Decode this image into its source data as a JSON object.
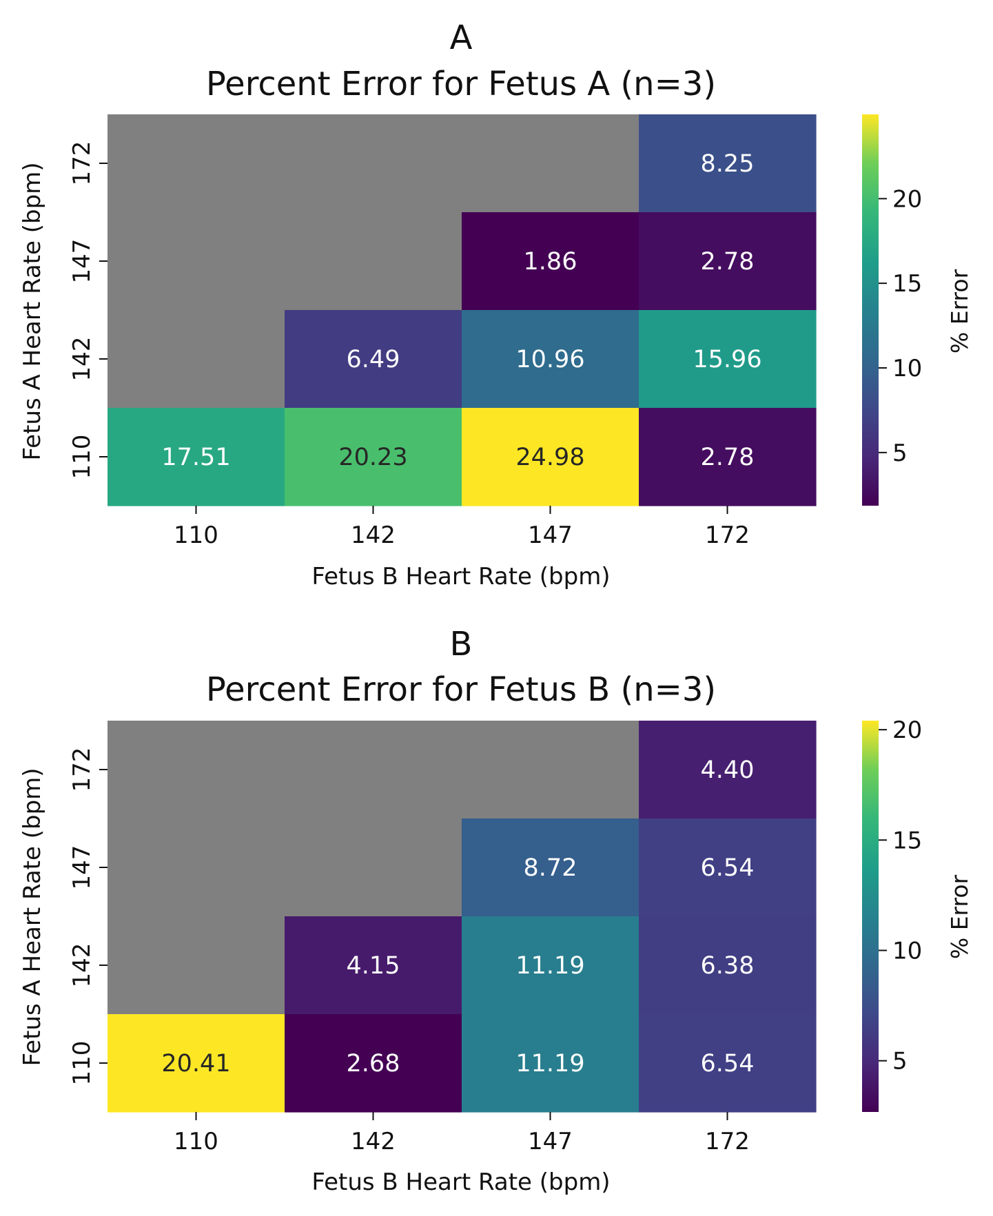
{
  "chart_data": [
    {
      "type": "heatmap",
      "panel_label": "A",
      "title": "Percent Error for Fetus A (n=3)",
      "xlabel": "Fetus B Heart Rate (bpm)",
      "ylabel": "Fetus A Heart Rate (bpm)",
      "x_categories": [
        "110",
        "142",
        "147",
        "172"
      ],
      "y_categories": [
        "172",
        "147",
        "142",
        "110"
      ],
      "values": [
        [
          null,
          null,
          null,
          8.25
        ],
        [
          null,
          null,
          1.86,
          2.78
        ],
        [
          null,
          6.49,
          10.96,
          15.96
        ],
        [
          17.51,
          20.23,
          24.98,
          2.78
        ]
      ],
      "value_labels": [
        [
          null,
          null,
          null,
          "8.25"
        ],
        [
          null,
          null,
          "1.86",
          "2.78"
        ],
        [
          null,
          "6.49",
          "10.96",
          "15.96"
        ],
        [
          "17.51",
          "20.23",
          "24.98",
          "2.78"
        ]
      ],
      "missing_color": "#808080",
      "colormap": "viridis",
      "colorbar": {
        "label": "% Error",
        "vmin": 1.86,
        "vmax": 24.98,
        "ticks": [
          5,
          10,
          15,
          20
        ],
        "tick_labels": [
          "5",
          "10",
          "15",
          "20"
        ]
      }
    },
    {
      "type": "heatmap",
      "panel_label": "B",
      "title": "Percent Error for Fetus B (n=3)",
      "xlabel": "Fetus B Heart Rate (bpm)",
      "ylabel": "Fetus A Heart Rate (bpm)",
      "x_categories": [
        "110",
        "142",
        "147",
        "172"
      ],
      "y_categories": [
        "172",
        "147",
        "142",
        "110"
      ],
      "values": [
        [
          null,
          null,
          null,
          4.4
        ],
        [
          null,
          null,
          8.72,
          6.54
        ],
        [
          null,
          4.15,
          11.19,
          6.38
        ],
        [
          20.41,
          2.68,
          11.19,
          6.54
        ]
      ],
      "value_labels": [
        [
          null,
          null,
          null,
          "4.40"
        ],
        [
          null,
          null,
          "8.72",
          "6.54"
        ],
        [
          null,
          "4.15",
          "11.19",
          "6.38"
        ],
        [
          "20.41",
          "2.68",
          "11.19",
          "6.54"
        ]
      ],
      "missing_color": "#808080",
      "colormap": "viridis",
      "colorbar": {
        "label": "% Error",
        "vmin": 2.68,
        "vmax": 20.41,
        "ticks": [
          5,
          10,
          15,
          20
        ],
        "tick_labels": [
          "5",
          "10",
          "15",
          "20"
        ]
      }
    }
  ]
}
